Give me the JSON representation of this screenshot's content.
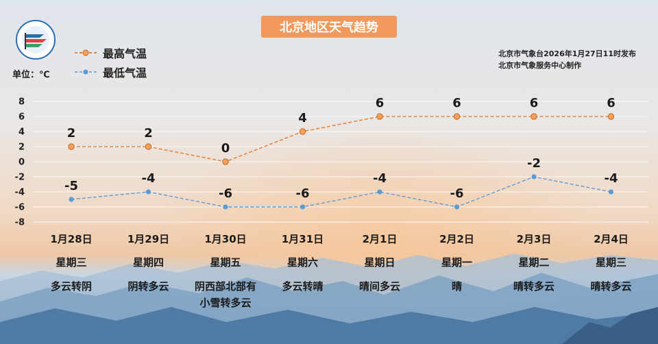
{
  "header": {
    "title": "北京地区天气趋势",
    "unit_label": "单位：℃",
    "issuer_line1": "北京市气象台2026年1月27日11时发布",
    "issuer_line2": "北京市气象服务中心制作"
  },
  "colors": {
    "high": "#e8843a",
    "low": "#5a9bd5",
    "title_bg": "#f0995a"
  },
  "chart_data": {
    "type": "line",
    "title": "北京地区天气趋势",
    "categories": [
      "1月28日",
      "1月29日",
      "1月30日",
      "1月31日",
      "2月1日",
      "2月2日",
      "2月3日",
      "2月4日"
    ],
    "series": [
      {
        "name": "最高气温",
        "values": [
          2,
          2,
          0,
          4,
          6,
          6,
          6,
          6
        ]
      },
      {
        "name": "最低气温",
        "values": [
          -5,
          -4,
          -6,
          -6,
          -4,
          -6,
          -2,
          -4
        ]
      }
    ],
    "yticks": [
      8,
      6,
      4,
      2,
      0,
      -2,
      -4,
      -6,
      -8
    ],
    "ylim": [
      -8,
      8
    ],
    "ylabel": "单位：℃",
    "grid": true,
    "legend_position": "top-left"
  },
  "days": [
    {
      "date": "1月28日",
      "weekday": "星期三",
      "weather": "多云转阴"
    },
    {
      "date": "1月29日",
      "weekday": "星期四",
      "weather": "阴转多云"
    },
    {
      "date": "1月30日",
      "weekday": "星期五",
      "weather": "阴西部北部有小雪转多云"
    },
    {
      "date": "1月31日",
      "weekday": "星期六",
      "weather": "多云转晴"
    },
    {
      "date": "2月1日",
      "weekday": "星期日",
      "weather": "晴间多云"
    },
    {
      "date": "2月2日",
      "weekday": "星期一",
      "weather": "晴"
    },
    {
      "date": "2月3日",
      "weekday": "星期二",
      "weather": "晴转多云"
    },
    {
      "date": "2月4日",
      "weekday": "星期三",
      "weather": "晴转多云"
    }
  ]
}
